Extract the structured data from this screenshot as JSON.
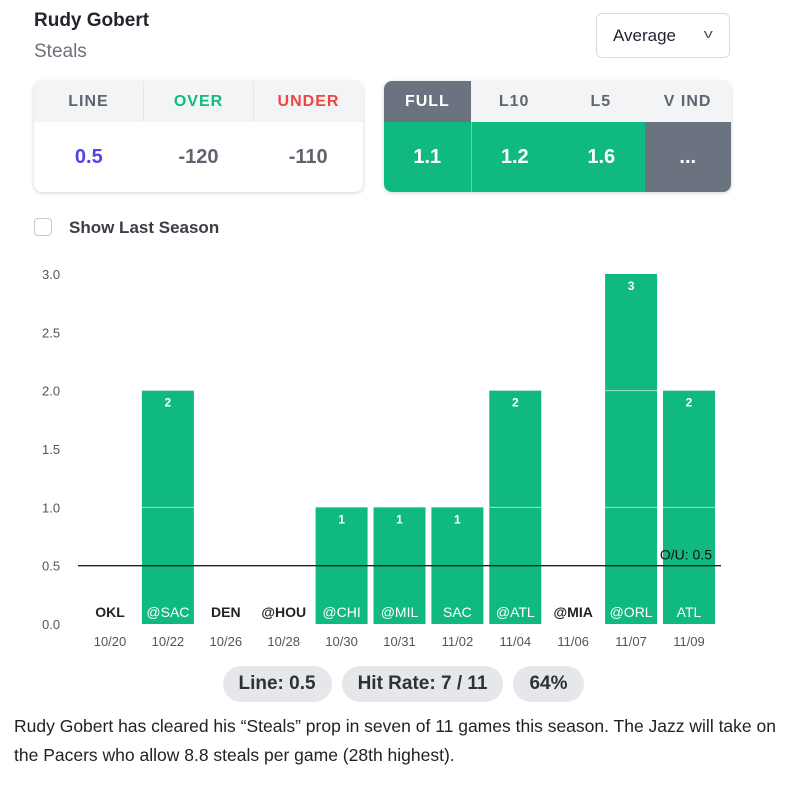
{
  "header": {
    "player": "Rudy Gobert",
    "stat": "Steals",
    "select_value": "Average"
  },
  "odds": {
    "headers": [
      "LINE",
      "OVER",
      "UNDER"
    ],
    "values": [
      "0.5",
      "-120",
      "-110"
    ],
    "colors": [
      "#4f46e5",
      "#10b981",
      "#ef4444"
    ]
  },
  "averages": {
    "headers": [
      "FULL",
      "L10",
      "L5",
      "V IND"
    ],
    "values": [
      "1.1",
      "1.2",
      "1.6",
      "..."
    ]
  },
  "show_last_season": {
    "label": "Show Last Season",
    "checked": false
  },
  "chart_data": {
    "type": "bar",
    "categories": [
      "OKL",
      "@SAC",
      "DEN",
      "@HOU",
      "@CHI",
      "@MIL",
      "SAC",
      "@ATL",
      "@MIA",
      "@ORL",
      "ATL"
    ],
    "dates": [
      "10/20",
      "10/22",
      "10/26",
      "10/28",
      "10/30",
      "10/31",
      "11/02",
      "11/04",
      "11/06",
      "11/07",
      "11/09"
    ],
    "values": [
      0,
      2,
      0,
      0,
      1,
      1,
      1,
      2,
      0,
      3,
      2
    ],
    "ylim": [
      0,
      3
    ],
    "yticks": [
      "0.0",
      "0.5",
      "1.0",
      "1.5",
      "2.0",
      "2.5",
      "3.0"
    ],
    "line": {
      "value": 0.5,
      "label": "O/U: 0.5"
    },
    "bar_color": "#10b981"
  },
  "summary": {
    "line": "Line: 0.5",
    "hit_rate": "Hit Rate: 7 / 11",
    "percent": "64%"
  },
  "description": "Rudy Gobert has cleared his “Steals” prop in seven of 11 games this season. The Jazz will take on the Pacers who allow 8.8 steals per game (28th highest)."
}
